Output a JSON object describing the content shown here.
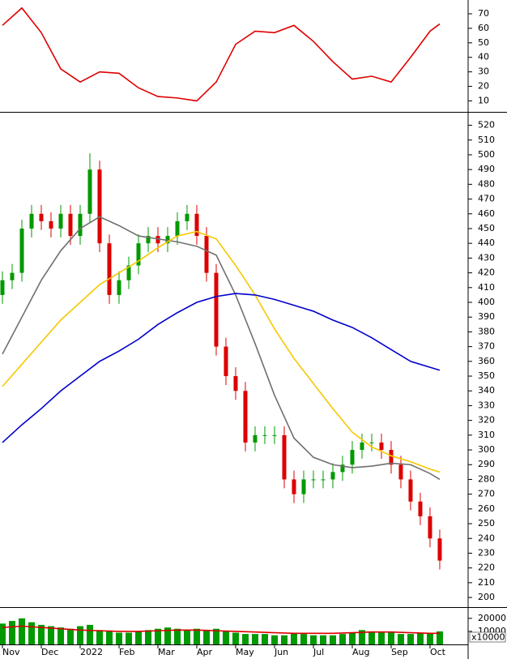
{
  "chart_data": [
    {
      "type": "line",
      "xlim": [
        -0.0625,
        11.98
      ],
      "ylim": [
        3,
        79.5
      ],
      "yticks": [
        10,
        20,
        30,
        40,
        50,
        60,
        70
      ],
      "series": [
        {
          "color": "#e00000",
          "x": [
            0,
            0.5,
            1,
            1.5,
            2,
            2.5,
            3,
            3.5,
            4,
            4.5,
            5,
            5.5,
            6,
            6.5,
            7,
            7.5,
            8,
            8.5,
            9,
            9.5,
            10,
            10.5,
            11,
            11.25
          ],
          "values": [
            62,
            74,
            57,
            32,
            23,
            30,
            29,
            19,
            13,
            12,
            10,
            23,
            49,
            58,
            57,
            62,
            51,
            37,
            25,
            27,
            23,
            40,
            58,
            63
          ]
        }
      ]
    },
    {
      "type": "candlestick",
      "xlim": [
        -0.0625,
        11.98
      ],
      "ylim": [
        194,
        528
      ],
      "yticks": [
        200,
        210,
        220,
        230,
        240,
        250,
        260,
        270,
        280,
        290,
        300,
        310,
        320,
        330,
        340,
        350,
        360,
        370,
        380,
        390,
        400,
        410,
        420,
        430,
        440,
        450,
        460,
        470,
        480,
        490,
        500,
        510,
        520
      ],
      "up_color": "#009900",
      "down_color": "#dd0000",
      "x": [
        0,
        0.25,
        0.5,
        0.75,
        1,
        1.25,
        1.5,
        1.75,
        2,
        2.25,
        2.5,
        2.75,
        3,
        3.25,
        3.5,
        3.75,
        4,
        4.25,
        4.5,
        4.75,
        5,
        5.25,
        5.5,
        5.75,
        6,
        6.25,
        6.5,
        6.75,
        7,
        7.25,
        7.5,
        7.75,
        8,
        8.25,
        8.5,
        8.75,
        9,
        9.25,
        9.5,
        9.75,
        10,
        10.25,
        10.5,
        10.75,
        11,
        11.25
      ],
      "open": [
        405,
        415,
        420,
        450,
        460,
        455,
        450,
        460,
        445,
        460,
        490,
        440,
        405,
        415,
        425,
        440,
        445,
        440,
        445,
        455,
        460,
        445,
        420,
        370,
        350,
        340,
        305,
        310,
        310,
        310,
        280,
        270,
        280,
        280,
        280,
        285,
        290,
        300,
        305,
        305,
        300,
        290,
        280,
        265,
        255,
        240
      ],
      "high": [
        421,
        426,
        456,
        466,
        466,
        461,
        466,
        466,
        466,
        501,
        496,
        446,
        421,
        431,
        446,
        451,
        451,
        451,
        461,
        466,
        466,
        451,
        426,
        376,
        356,
        346,
        316,
        316,
        316,
        316,
        286,
        286,
        286,
        286,
        291,
        296,
        306,
        311,
        311,
        311,
        306,
        296,
        286,
        271,
        261,
        246
      ],
      "low": [
        399,
        409,
        414,
        444,
        449,
        444,
        444,
        439,
        439,
        454,
        434,
        399,
        399,
        409,
        419,
        434,
        434,
        434,
        439,
        449,
        439,
        414,
        364,
        344,
        334,
        299,
        299,
        304,
        304,
        274,
        264,
        264,
        274,
        274,
        274,
        279,
        284,
        294,
        299,
        294,
        284,
        274,
        259,
        249,
        234,
        219
      ],
      "close": [
        415,
        420,
        450,
        460,
        455,
        450,
        460,
        445,
        460,
        490,
        440,
        405,
        415,
        425,
        440,
        445,
        440,
        445,
        455,
        460,
        445,
        420,
        370,
        350,
        340,
        305,
        310,
        310,
        310,
        280,
        270,
        280,
        280,
        280,
        285,
        290,
        300,
        305,
        305,
        300,
        290,
        280,
        265,
        255,
        240,
        225
      ],
      "series": [
        {
          "color": "#707070",
          "x": [
            0,
            0.5,
            1,
            1.5,
            2,
            2.5,
            3,
            3.5,
            4,
            4.5,
            5,
            5.5,
            6,
            6.5,
            7,
            7.5,
            8,
            8.5,
            9,
            9.5,
            10,
            10.5,
            11,
            11.25
          ],
          "values": [
            365,
            390,
            415,
            435,
            450,
            458,
            452,
            445,
            443,
            441,
            438,
            432,
            405,
            372,
            337,
            308,
            295,
            290,
            288,
            289,
            291,
            290,
            284,
            280
          ]
        },
        {
          "color": "#f5c800",
          "x": [
            0,
            0.5,
            1,
            1.5,
            2,
            2.5,
            3,
            3.5,
            4,
            4.5,
            5,
            5.5,
            6,
            6.5,
            7,
            7.5,
            8,
            8.5,
            9,
            9.5,
            10,
            10.5,
            11,
            11.25
          ],
          "values": [
            343,
            358,
            373,
            388,
            400,
            412,
            420,
            428,
            437,
            445,
            448,
            443,
            425,
            405,
            382,
            362,
            345,
            328,
            312,
            302,
            296,
            292,
            287,
            285
          ]
        },
        {
          "color": "#0000cc",
          "x": [
            0,
            0.5,
            1,
            1.5,
            2,
            2.5,
            3,
            3.5,
            4,
            4.5,
            5,
            5.5,
            6,
            6.5,
            7,
            7.5,
            8,
            8.5,
            9,
            9.5,
            10,
            10.5,
            11,
            11.25
          ],
          "values": [
            305,
            317,
            328,
            340,
            350,
            360,
            367,
            375,
            385,
            393,
            400,
            404,
            406,
            405,
            402,
            398,
            394,
            388,
            383,
            376,
            368,
            360,
            356,
            354
          ]
        }
      ]
    },
    {
      "type": "bar",
      "xlim": [
        -0.0625,
        11.98
      ],
      "ylim": [
        0,
        28000
      ],
      "yticks": [
        10000,
        20000
      ],
      "unit_label": "x10000",
      "color": "#009900",
      "x": [
        0,
        0.25,
        0.5,
        0.75,
        1,
        1.25,
        1.5,
        1.75,
        2,
        2.25,
        2.5,
        2.75,
        3,
        3.25,
        3.5,
        3.75,
        4,
        4.25,
        4.5,
        4.75,
        5,
        5.25,
        5.5,
        5.75,
        6,
        6.25,
        6.5,
        6.75,
        7,
        7.25,
        7.5,
        7.75,
        8,
        8.25,
        8.5,
        8.75,
        9,
        9.25,
        9.5,
        9.75,
        10,
        10.25,
        10.5,
        10.75,
        11,
        11.25
      ],
      "values": [
        16000,
        18000,
        20000,
        17000,
        15000,
        14000,
        13000,
        12000,
        14000,
        15000,
        11000,
        10000,
        9000,
        9000,
        10000,
        11000,
        12000,
        13000,
        12000,
        11000,
        12000,
        11000,
        12000,
        10000,
        9000,
        8000,
        8000,
        8000,
        7000,
        7000,
        9000,
        8000,
        7000,
        7000,
        7000,
        8000,
        9000,
        11000,
        10000,
        9000,
        9000,
        8000,
        8000,
        9000,
        9000,
        10000
      ],
      "series": [
        {
          "color": "#dd0000",
          "x": [
            0,
            0.5,
            1,
            1.5,
            2,
            2.5,
            3,
            3.5,
            4,
            4.5,
            5,
            5.5,
            6,
            6.5,
            7,
            7.5,
            8,
            8.5,
            9,
            9.5,
            10,
            10.5,
            11,
            11.25
          ],
          "values": [
            13000,
            14000,
            13000,
            12000,
            11000,
            10500,
            10000,
            10000,
            10500,
            11000,
            11000,
            10500,
            10000,
            9500,
            9000,
            8500,
            8500,
            8500,
            9000,
            9500,
            9500,
            9000,
            8500,
            8500
          ]
        }
      ],
      "xticks": [
        {
          "value": 0,
          "label": "Nov"
        },
        {
          "value": 1,
          "label": "Dec"
        },
        {
          "value": 2,
          "label": "2022"
        },
        {
          "value": 3,
          "label": "Feb"
        },
        {
          "value": 4,
          "label": "Mar"
        },
        {
          "value": 5,
          "label": "Apr"
        },
        {
          "value": 6,
          "label": "May"
        },
        {
          "value": 7,
          "label": "Jun"
        },
        {
          "value": 8,
          "label": "Jul"
        },
        {
          "value": 9,
          "label": "Aug"
        },
        {
          "value": 10,
          "label": "Sep"
        },
        {
          "value": 11,
          "label": "Oct"
        }
      ]
    }
  ]
}
